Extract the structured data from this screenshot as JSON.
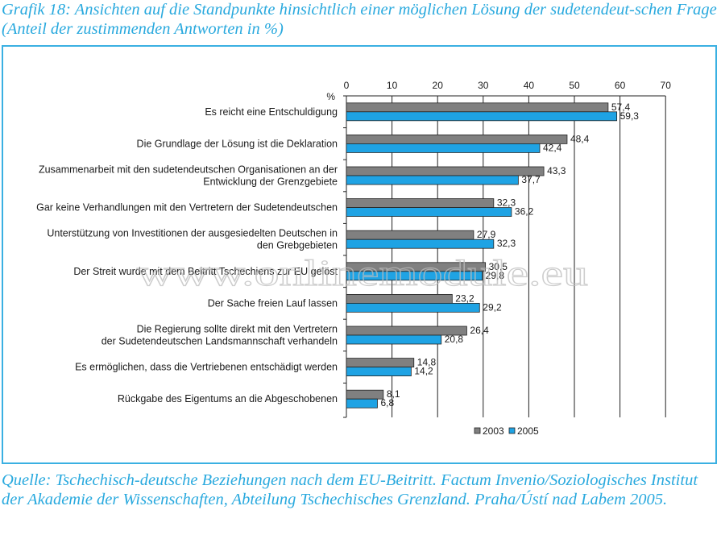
{
  "caption": {
    "title": "Grafik 18: Ansichten auf die Standpunkte hinsichtlich einer möglichen Lösung der sudetendeut-schen Frage (Anteil der zustimmenden Antworten in %)",
    "source": "Quelle: Tschechisch-deutsche Beziehungen nach dem EU-Beitritt. Factum Invenio/Soziologisches Institut der Akademie der Wissenschaften, Abteilung Tschechisches Grenzland. Praha/Ústí nad Labem 2005."
  },
  "watermark": "www.onlinemodule.eu",
  "colors": {
    "series_2003": "#808080",
    "series_2005": "#1fa3e4",
    "frame": "#3ab0e2",
    "caption": "#29a9de"
  },
  "chart_data": {
    "type": "bar",
    "orientation": "horizontal",
    "unit_label": "%",
    "xlim": [
      0,
      70
    ],
    "ticks": [
      0,
      10,
      20,
      30,
      40,
      50,
      60,
      70
    ],
    "grid": true,
    "legend_position": "bottom-right",
    "categories": [
      [
        "Es reicht eine Entschuldigung"
      ],
      [
        "Die Grundlage der Lösung ist die Deklaration"
      ],
      [
        "Zusammenarbeit mit den sudetendeutschen Organisationen an der",
        "Entwicklung der Grenzgebiete"
      ],
      [
        "Gar keine Verhandlungen mit den Vertretern der Sudetendeutschen"
      ],
      [
        "Unterstützung von Investitionen der ausgesiedelten Deutschen in",
        "den Grebgebieten"
      ],
      [
        "Der Streit wurde mit dem Beitritt Tschechiens zur EU gelöst"
      ],
      [
        "Der Sache freien Lauf lassen"
      ],
      [
        "Die Regierung sollte direkt mit den Vertretern",
        "der Sudetendeutschen Landsmannschaft verhandeln"
      ],
      [
        "Es ermöglichen, dass die Vertriebenen entschädigt werden"
      ],
      [
        "Rückgabe des Eigentums an die Abgeschobenen"
      ]
    ],
    "series": [
      {
        "name": "2003",
        "values": [
          57.4,
          48.4,
          43.3,
          32.3,
          27.9,
          30.5,
          23.2,
          26.4,
          14.8,
          8.1
        ],
        "labels": [
          "57,4",
          "48,4",
          "43,3",
          "32,3",
          "27,9",
          "30,5",
          "23,2",
          "26,4",
          "14,8",
          "8,1"
        ]
      },
      {
        "name": "2005",
        "values": [
          59.3,
          42.4,
          37.7,
          36.2,
          32.3,
          29.8,
          29.2,
          20.8,
          14.2,
          6.8
        ],
        "labels": [
          "59,3",
          "42,4",
          "37,7",
          "36,2",
          "32,3",
          "29,8",
          "29,2",
          "20,8",
          "14,2",
          "6,8"
        ]
      }
    ]
  }
}
